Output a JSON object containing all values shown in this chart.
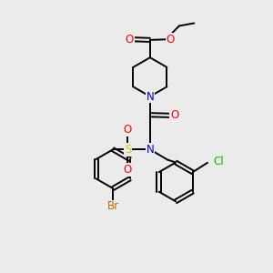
{
  "bg_color": "#ebebeb",
  "bond_color": "#000000",
  "atom_colors": {
    "O": "#ff0000",
    "N": "#0000cc",
    "S": "#cccc00",
    "Br": "#cc6600",
    "Cl": "#00bb00"
  },
  "font_size": 8.5,
  "bond_width": 1.4,
  "ring_r": 0.72,
  "pip_r": 0.72
}
